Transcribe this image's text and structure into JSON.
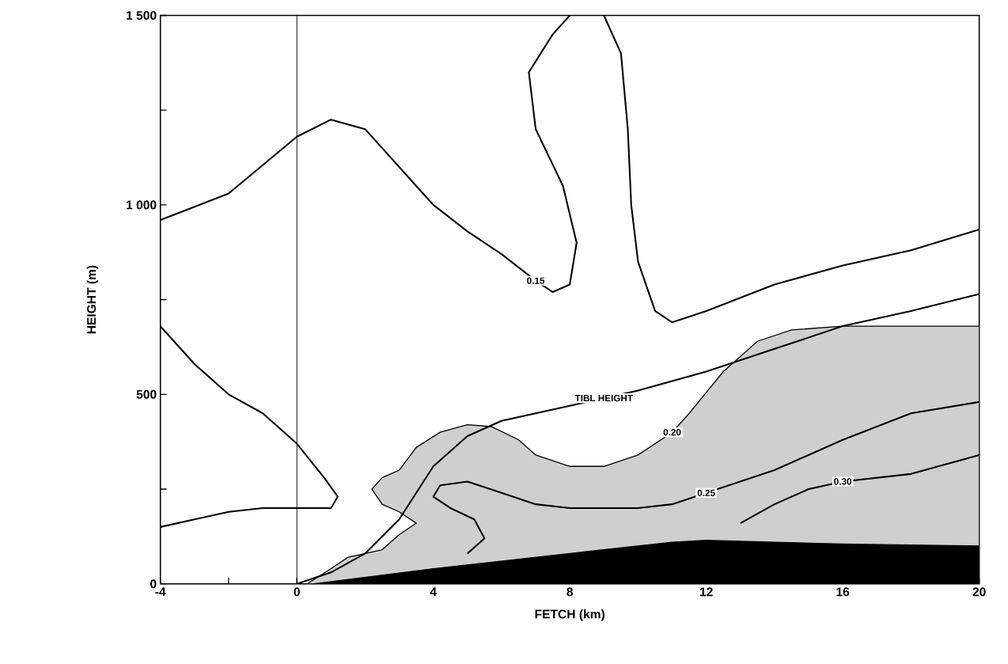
{
  "chart_data": {
    "type": "line",
    "xlabel": "FETCH (km)",
    "ylabel": "HEIGHT (m)",
    "xlim": [
      -4,
      20
    ],
    "ylim": [
      0,
      1500
    ],
    "xticks": [
      -4,
      {
        "value": -2,
        "label": null
      },
      0,
      {
        "value": 2,
        "label": null
      },
      4,
      {
        "value": 6,
        "label": null
      },
      8,
      {
        "value": 10,
        "label": null
      },
      12,
      {
        "value": 14,
        "label": null
      },
      16,
      {
        "value": 18,
        "label": null
      },
      20
    ],
    "yticks": [
      0,
      {
        "value": 250,
        "label": null
      },
      500,
      {
        "value": 750,
        "label": null
      },
      {
        "value": 1000,
        "label": "1 000"
      },
      {
        "value": 1250,
        "label": null
      },
      {
        "value": 1500,
        "label": "1 500"
      }
    ],
    "grid": false,
    "marker": "none",
    "ref_lines": [
      {
        "axis": "x",
        "value": 0,
        "color": "#000000"
      }
    ],
    "series": [
      {
        "type": "area",
        "color": "#cfcfcf",
        "x": [
          0.3,
          1,
          1.5,
          2.5,
          3,
          3.5,
          3,
          2.5,
          2.2,
          2.5,
          3,
          3.5,
          4.2,
          5,
          5.7,
          6.5,
          7,
          8,
          9,
          10,
          11,
          11.5,
          12.5,
          13.5,
          14.5,
          16,
          20,
          20
        ],
        "values": [
          0,
          40,
          70,
          90,
          130,
          160,
          190,
          210,
          250,
          280,
          300,
          360,
          400,
          420,
          415,
          380,
          340,
          310,
          310,
          340,
          400,
          450,
          560,
          640,
          670,
          680,
          680,
          0
        ]
      },
      {
        "type": "area",
        "color": "#000000",
        "x": [
          0.5,
          4,
          8,
          11,
          12,
          14,
          16,
          20,
          20
        ],
        "values": [
          0,
          40,
          80,
          110,
          115,
          110,
          105,
          100,
          0
        ]
      },
      {
        "color": "#000000",
        "x": [
          -4,
          -2,
          0,
          1,
          2,
          3,
          4,
          5,
          6,
          7,
          7.5,
          8,
          8.2,
          7.8,
          7,
          6.8,
          7.5,
          8
        ],
        "values": [
          960,
          1030,
          1180,
          1225,
          1200,
          1100,
          1000,
          930,
          870,
          800,
          770,
          790,
          900,
          1050,
          1200,
          1350,
          1450,
          1500
        ]
      },
      {
        "color": "#000000",
        "x": [
          9,
          9.5,
          9.7,
          9.8,
          10,
          10.5,
          11,
          12,
          14,
          16,
          18,
          20
        ],
        "values": [
          1500,
          1400,
          1200,
          1000,
          850,
          720,
          690,
          720,
          790,
          840,
          880,
          935
        ]
      },
      {
        "color": "#000000",
        "x": [
          -4,
          -3,
          -2,
          -1,
          0,
          0.8,
          1.2,
          1,
          0.2,
          -1,
          -2,
          -3,
          -4
        ],
        "values": [
          680,
          580,
          500,
          450,
          370,
          280,
          230,
          200,
          200,
          200,
          190,
          170,
          150
        ]
      },
      {
        "color": "#000000",
        "x": [
          5,
          5.5,
          5.2,
          4.5,
          4,
          4.2,
          5,
          6,
          7,
          8,
          10,
          11,
          12,
          14,
          16,
          18,
          20
        ],
        "values": [
          80,
          120,
          170,
          200,
          230,
          260,
          270,
          240,
          210,
          200,
          200,
          210,
          240,
          300,
          380,
          450,
          480
        ]
      },
      {
        "color": "#000000",
        "x": [
          13,
          14,
          15,
          16,
          18,
          20
        ],
        "values": [
          160,
          210,
          250,
          270,
          290,
          340
        ]
      },
      {
        "color": "#000000",
        "x": [
          0,
          1,
          2,
          3,
          4,
          5,
          6,
          8,
          10,
          12,
          14,
          16,
          18,
          20
        ],
        "values": [
          0,
          30,
          80,
          170,
          310,
          390,
          430,
          470,
          510,
          560,
          620,
          680,
          720,
          765
        ]
      }
    ],
    "annotations": [
      {
        "text": "0.15",
        "x": 7,
        "y": 800
      },
      {
        "text": "0.20",
        "x": 11,
        "y": 400
      },
      {
        "text": "0.25",
        "x": 12,
        "y": 240
      },
      {
        "text": "0.30",
        "x": 16,
        "y": 270
      },
      {
        "text": "TIBL HEIGHT",
        "x": 9,
        "y": 490
      }
    ]
  }
}
